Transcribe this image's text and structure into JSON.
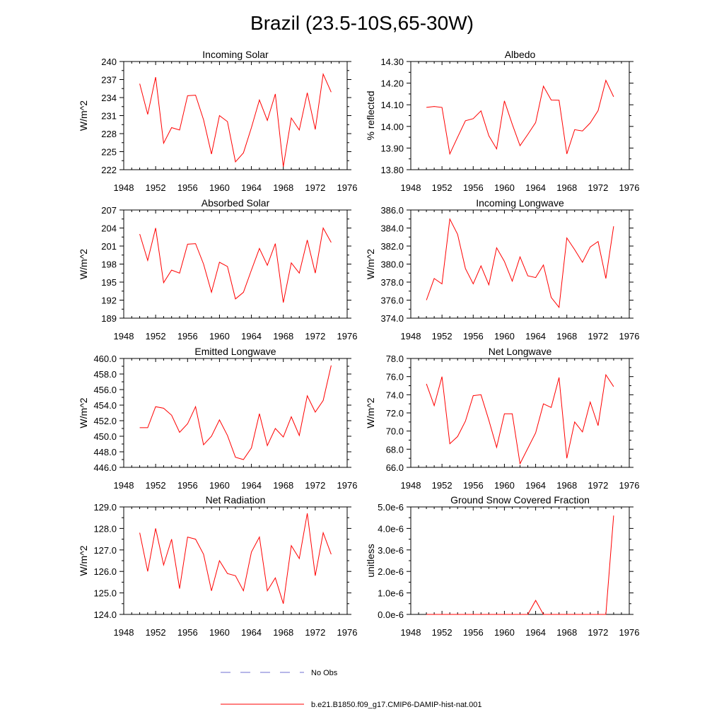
{
  "figure_title": "Brazil (23.5-10S,65-30W)",
  "legend": {
    "obs": {
      "label": "No Obs",
      "color": "#6f6fd0",
      "style": "dashed"
    },
    "model": {
      "label": "b.e21.B1850.f09_g17.CMIP6-DAMIP-hist-nat.001",
      "color": "#ff0000",
      "style": "solid"
    }
  },
  "years": [
    1950,
    1951,
    1952,
    1953,
    1954,
    1955,
    1956,
    1957,
    1958,
    1959,
    1960,
    1961,
    1962,
    1963,
    1964,
    1965,
    1966,
    1967,
    1968,
    1969,
    1970,
    1971,
    1972,
    1973,
    1974
  ],
  "chart_data": [
    {
      "type": "line",
      "title": "Incoming Solar",
      "ylabel": "W/m^2",
      "xlim": [
        1948,
        1976
      ],
      "xticks": [
        "1948",
        "1952",
        "1956",
        "1960",
        "1964",
        "1968",
        "1972",
        "1976"
      ],
      "ylim": [
        222,
        240
      ],
      "yticks": [
        "222",
        "225",
        "228",
        "231",
        "234",
        "237",
        "240"
      ],
      "series": [
        {
          "values": [
            236.3,
            231.2,
            237.4,
            226.4,
            229.0,
            228.6,
            234.3,
            234.4,
            230.3,
            224.6,
            231.0,
            230.0,
            223.3,
            224.8,
            229.0,
            233.6,
            230.2,
            234.6,
            222.5,
            230.6,
            228.6,
            234.8,
            228.7,
            237.9,
            234.9
          ]
        }
      ]
    },
    {
      "type": "line",
      "title": "Albedo",
      "ylabel": "% reflected",
      "xlim": [
        1948,
        1976
      ],
      "xticks": [
        "1948",
        "1952",
        "1956",
        "1960",
        "1964",
        "1968",
        "1972",
        "1976"
      ],
      "ylim": [
        13.8,
        14.3
      ],
      "yticks": [
        "13.80",
        "13.90",
        "14.00",
        "14.10",
        "14.20",
        "14.30"
      ],
      "series": [
        {
          "values": [
            14.088,
            14.092,
            14.088,
            13.873,
            13.95,
            14.026,
            14.036,
            14.072,
            13.957,
            13.896,
            14.118,
            14.01,
            13.911,
            13.963,
            14.018,
            14.186,
            14.122,
            14.121,
            13.873,
            13.985,
            13.979,
            14.016,
            14.073,
            14.213,
            14.137
          ]
        }
      ]
    },
    {
      "type": "line",
      "title": "Absorbed Solar",
      "ylabel": "W/m^2",
      "xlim": [
        1948,
        1976
      ],
      "xticks": [
        "1948",
        "1952",
        "1956",
        "1960",
        "1964",
        "1968",
        "1972",
        "1976"
      ],
      "ylim": [
        189,
        207
      ],
      "yticks": [
        "189",
        "192",
        "195",
        "198",
        "201",
        "204",
        "207"
      ],
      "series": [
        {
          "values": [
            203.0,
            198.6,
            204.0,
            194.9,
            197.0,
            196.5,
            201.3,
            201.4,
            198.0,
            193.3,
            198.3,
            197.6,
            192.2,
            193.3,
            197.0,
            200.6,
            197.8,
            201.4,
            191.6,
            198.2,
            196.5,
            202.0,
            196.5,
            204.0,
            201.6
          ]
        }
      ]
    },
    {
      "type": "line",
      "title": "Incoming Longwave",
      "ylabel": "W/m^2",
      "xlim": [
        1948,
        1976
      ],
      "xticks": [
        "1948",
        "1952",
        "1956",
        "1960",
        "1964",
        "1968",
        "1972",
        "1976"
      ],
      "ylim": [
        374.0,
        386.0
      ],
      "yticks": [
        "374.0",
        "376.0",
        "378.0",
        "380.0",
        "382.0",
        "384.0",
        "386.0"
      ],
      "series": [
        {
          "values": [
            376.0,
            378.4,
            377.8,
            385.0,
            383.3,
            379.5,
            377.8,
            379.8,
            377.7,
            381.8,
            380.3,
            378.1,
            380.8,
            378.7,
            378.5,
            379.9,
            376.3,
            375.2,
            382.9,
            381.6,
            380.2,
            381.9,
            382.5,
            378.4,
            384.2
          ]
        }
      ]
    },
    {
      "type": "line",
      "title": "Emitted Longwave",
      "ylabel": "W/m^2",
      "xlim": [
        1948,
        1976
      ],
      "xticks": [
        "1948",
        "1952",
        "1956",
        "1960",
        "1964",
        "1968",
        "1972",
        "1976"
      ],
      "ylim": [
        446.0,
        460.0
      ],
      "yticks": [
        "446.0",
        "448.0",
        "450.0",
        "452.0",
        "454.0",
        "456.0",
        "458.0",
        "460.0"
      ],
      "series": [
        {
          "values": [
            451.1,
            451.1,
            453.8,
            453.6,
            452.7,
            450.5,
            451.6,
            453.8,
            448.9,
            450.0,
            452.1,
            450.1,
            447.3,
            447.0,
            448.5,
            452.9,
            448.8,
            451.0,
            449.9,
            452.5,
            450.1,
            455.2,
            453.1,
            454.6,
            459.1
          ]
        }
      ]
    },
    {
      "type": "line",
      "title": "Net Longwave",
      "ylabel": "W/m^2",
      "xlim": [
        1948,
        1976
      ],
      "xticks": [
        "1948",
        "1952",
        "1956",
        "1960",
        "1964",
        "1968",
        "1972",
        "1976"
      ],
      "ylim": [
        66.0,
        78.0
      ],
      "yticks": [
        "66.0",
        "68.0",
        "70.0",
        "72.0",
        "74.0",
        "76.0",
        "78.0"
      ],
      "series": [
        {
          "values": [
            75.2,
            72.8,
            76.0,
            68.6,
            69.4,
            71.1,
            73.9,
            74.0,
            71.2,
            68.2,
            71.9,
            71.9,
            66.4,
            68.1,
            69.8,
            73.0,
            72.6,
            75.9,
            67.0,
            71.0,
            69.9,
            73.2,
            70.6,
            76.2,
            74.9
          ]
        }
      ]
    },
    {
      "type": "line",
      "title": "Net Radiation",
      "ylabel": "W/m^2",
      "xlim": [
        1948,
        1976
      ],
      "xticks": [
        "1948",
        "1952",
        "1956",
        "1960",
        "1964",
        "1968",
        "1972",
        "1976"
      ],
      "ylim": [
        124.0,
        129.0
      ],
      "yticks": [
        "124.0",
        "125.0",
        "126.0",
        "127.0",
        "128.0",
        "129.0"
      ],
      "series": [
        {
          "values": [
            127.8,
            126.0,
            128.0,
            126.3,
            127.5,
            125.2,
            127.6,
            127.5,
            126.8,
            125.1,
            126.5,
            125.9,
            125.8,
            125.1,
            126.9,
            127.6,
            125.1,
            125.7,
            124.5,
            127.2,
            126.6,
            128.7,
            125.8,
            127.8,
            126.8
          ]
        }
      ]
    },
    {
      "type": "line",
      "title": "Ground Snow Covered Fraction",
      "ylabel": "unitless",
      "xlim": [
        1948,
        1976
      ],
      "xticks": [
        "1948",
        "1952",
        "1956",
        "1960",
        "1964",
        "1968",
        "1972",
        "1976"
      ],
      "ylim": [
        0,
        5e-06
      ],
      "yticks": [
        "0.0e-6",
        "1.0e-6",
        "2.0e-6",
        "3.0e-6",
        "4.0e-6",
        "5.0e-6"
      ],
      "series": [
        {
          "values": [
            0,
            0,
            0,
            0,
            0,
            0,
            0,
            0,
            0,
            0,
            0,
            0,
            0,
            0,
            6.5e-07,
            0,
            0,
            0,
            0,
            0,
            0,
            0,
            0,
            0,
            4.6e-06
          ]
        }
      ]
    }
  ]
}
